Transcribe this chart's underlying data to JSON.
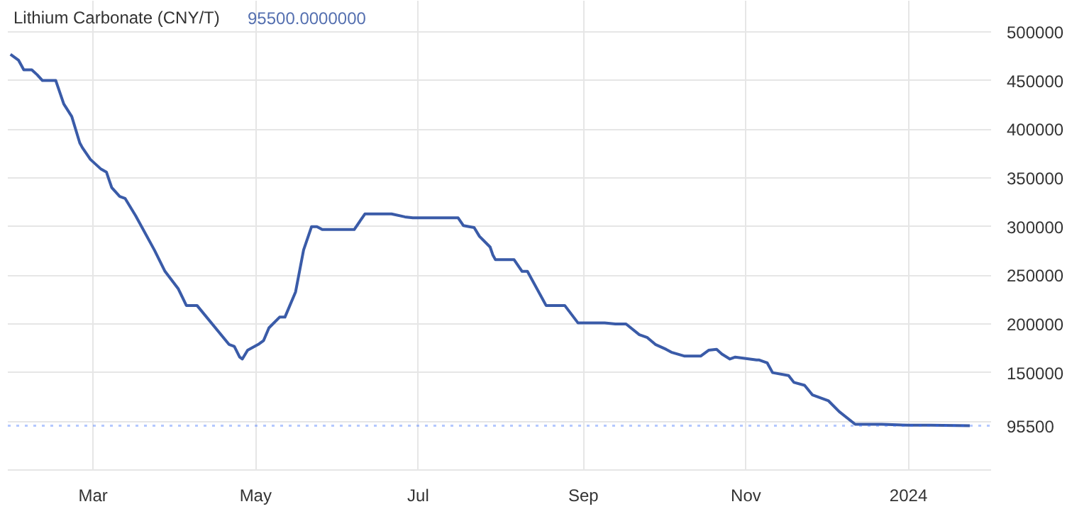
{
  "chart_data": {
    "type": "line",
    "title": "Lithium Carbonate (CNY/T)",
    "subtitle": "95500.0000000",
    "x": [
      "2023-01-29",
      "2023-02-01",
      "2023-02-03",
      "2023-02-06",
      "2023-02-08",
      "2023-02-10",
      "2023-02-15",
      "2023-02-18",
      "2023-02-21",
      "2023-02-24",
      "2023-02-25",
      "2023-02-28",
      "2023-03-04",
      "2023-03-06",
      "2023-03-08",
      "2023-03-11",
      "2023-03-13",
      "2023-03-17",
      "2023-03-24",
      "2023-03-28",
      "2023-04-02",
      "2023-04-05",
      "2023-04-09",
      "2023-04-21",
      "2023-04-23",
      "2023-04-25",
      "2023-04-26",
      "2023-04-28",
      "2023-05-02",
      "2023-05-04",
      "2023-05-06",
      "2023-05-10",
      "2023-05-12",
      "2023-05-16",
      "2023-05-19",
      "2023-05-22",
      "2023-05-24",
      "2023-05-26",
      "2023-06-07",
      "2023-06-11",
      "2023-06-21",
      "2023-06-26",
      "2023-06-29",
      "2023-07-16",
      "2023-07-18",
      "2023-07-22",
      "2023-07-24",
      "2023-07-28",
      "2023-07-29",
      "2023-07-30",
      "2023-08-06",
      "2023-08-09",
      "2023-08-11",
      "2023-08-18",
      "2023-08-25",
      "2023-08-30",
      "2023-09-09",
      "2023-09-13",
      "2023-09-17",
      "2023-09-22",
      "2023-09-25",
      "2023-09-28",
      "2023-10-02",
      "2023-10-04",
      "2023-10-09",
      "2023-10-11",
      "2023-10-15",
      "2023-10-18",
      "2023-10-21",
      "2023-10-23",
      "2023-10-26",
      "2023-10-28",
      "2023-11-05",
      "2023-11-06",
      "2023-11-09",
      "2023-11-11",
      "2023-11-17",
      "2023-11-19",
      "2023-11-23",
      "2023-11-26",
      "2023-12-02",
      "2023-12-06",
      "2023-12-12",
      "2023-12-22",
      "2024-01-01",
      "2024-01-09",
      "2024-01-24"
    ],
    "series": [
      {
        "color": "#3a5ba8",
        "values": [
          477000,
          471000,
          461000,
          461000,
          456000,
          450000,
          450000,
          426000,
          413000,
          386000,
          381000,
          369000,
          359000,
          356000,
          340000,
          331000,
          329000,
          311000,
          276000,
          254000,
          236000,
          219000,
          219000,
          179000,
          177000,
          166000,
          164000,
          173000,
          179000,
          183000,
          196000,
          207000,
          207000,
          233000,
          276000,
          300000,
          300000,
          297000,
          297000,
          313000,
          313000,
          310000,
          309000,
          309000,
          301000,
          299000,
          290000,
          279000,
          271000,
          266000,
          266000,
          254000,
          254000,
          219000,
          219000,
          201000,
          201000,
          200000,
          200000,
          189000,
          186000,
          179000,
          174000,
          171000,
          167000,
          167000,
          167000,
          173000,
          174000,
          169000,
          164000,
          166000,
          163000,
          163000,
          160000,
          150000,
          147000,
          140000,
          137000,
          127000,
          121000,
          110000,
          97000,
          97000,
          96000,
          96000,
          95500
        ]
      }
    ],
    "xlim": [
      "2023-01-28",
      "2024-02-01"
    ],
    "xticks": [
      {
        "value": "2023-03-01",
        "label": "Mar"
      },
      {
        "value": "2023-05-01",
        "label": "May"
      },
      {
        "value": "2023-07-01",
        "label": "Jul"
      },
      {
        "value": "2023-09-01",
        "label": "Sep"
      },
      {
        "value": "2023-11-01",
        "label": "Nov"
      },
      {
        "value": "2024-01-01",
        "label": "2024"
      }
    ],
    "ylim": [
      50000,
      532000
    ],
    "yticks": [
      {
        "value": 100000,
        "label": null
      },
      150000,
      200000,
      250000,
      300000,
      350000,
      400000,
      450000,
      500000
    ],
    "ref_lines": [
      {
        "axis": "y",
        "value": 95500,
        "label": "95500",
        "color": "#2962ff",
        "line_style": "dotted"
      }
    ],
    "grid": true,
    "line_style": "solid",
    "marker": "none"
  }
}
